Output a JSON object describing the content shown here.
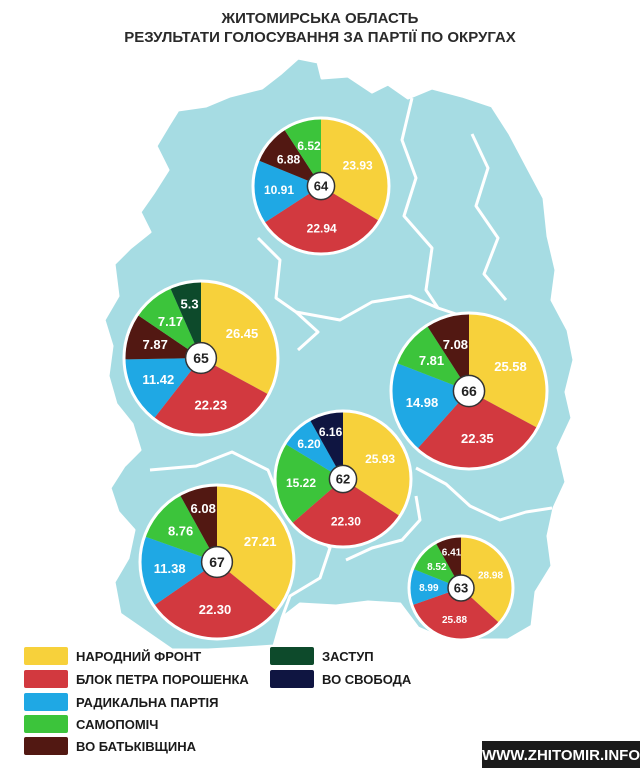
{
  "title": {
    "line1": "ЖИТОМИРСЬКА ОБЛАСТЬ",
    "line2": "РЕЗУЛЬТАТИ ГОЛОСУВАННЯ ЗА ПАРТІЇ ПО ОКРУГАХ"
  },
  "colors": {
    "map_fill": "#a6dce3",
    "map_stroke": "#ffffff",
    "background": "#ffffff",
    "pie_border": "#ffffff"
  },
  "parties": [
    {
      "key": "nf",
      "label": "НАРОДНИЙ ФРОНТ",
      "color": "#f7d13b"
    },
    {
      "key": "bpp",
      "label": "БЛОК ПЕТРА ПОРОШЕНКА",
      "color": "#d2393f"
    },
    {
      "key": "rp",
      "label": "РАДИКАЛЬНА ПАРТІЯ",
      "color": "#1fa8e4"
    },
    {
      "key": "sam",
      "label": "САМОПОМІЧ",
      "color": "#3cc43b"
    },
    {
      "key": "bat",
      "label": "ВО БАТЬКІВЩИНА",
      "color": "#521812"
    },
    {
      "key": "zastup",
      "label": "ЗАСТУП",
      "color": "#0d4a2b"
    },
    {
      "key": "svoboda",
      "label": "ВО СВОБОДА",
      "color": "#0f1541"
    }
  ],
  "chart_data": {
    "type": "pie",
    "title": "ЖИТОМИРСЬКА ОБЛАСТЬ — РЕЗУЛЬТАТИ ГОЛОСУВАННЯ ЗА ПАРТІЇ ПО ОКРУГАХ",
    "unit": "%",
    "districts": [
      {
        "district": "64",
        "slices": [
          {
            "party": "nf",
            "value": 23.93,
            "label": "23.93"
          },
          {
            "party": "bpp",
            "value": 22.94,
            "label": "22.94"
          },
          {
            "party": "rp",
            "value": 10.91,
            "label": "10.91"
          },
          {
            "party": "bat",
            "value": 6.88,
            "label": "6.88"
          },
          {
            "party": "sam",
            "value": 6.52,
            "label": "6.52"
          }
        ]
      },
      {
        "district": "65",
        "slices": [
          {
            "party": "nf",
            "value": 26.45,
            "label": "26.45"
          },
          {
            "party": "bpp",
            "value": 22.23,
            "label": "22.23"
          },
          {
            "party": "rp",
            "value": 11.42,
            "label": "11.42"
          },
          {
            "party": "bat",
            "value": 7.87,
            "label": "7.87"
          },
          {
            "party": "sam",
            "value": 7.17,
            "label": "7.17"
          },
          {
            "party": "zastup",
            "value": 5.3,
            "label": "5.3"
          }
        ]
      },
      {
        "district": "66",
        "slices": [
          {
            "party": "nf",
            "value": 25.58,
            "label": "25.58"
          },
          {
            "party": "bpp",
            "value": 22.35,
            "label": "22.35"
          },
          {
            "party": "rp",
            "value": 14.98,
            "label": "14.98"
          },
          {
            "party": "sam",
            "value": 7.81,
            "label": "7.81"
          },
          {
            "party": "bat",
            "value": 7.08,
            "label": "7.08"
          }
        ]
      },
      {
        "district": "62",
        "slices": [
          {
            "party": "nf",
            "value": 25.93,
            "label": "25.93"
          },
          {
            "party": "bpp",
            "value": 22.3,
            "label": "22.30"
          },
          {
            "party": "sam",
            "value": 15.22,
            "label": "15.22"
          },
          {
            "party": "rp",
            "value": 6.2,
            "label": "6.20"
          },
          {
            "party": "svoboda",
            "value": 6.16,
            "label": "6.16"
          }
        ]
      },
      {
        "district": "67",
        "slices": [
          {
            "party": "nf",
            "value": 27.21,
            "label": "27.21"
          },
          {
            "party": "bpp",
            "value": 22.3,
            "label": "22.30"
          },
          {
            "party": "rp",
            "value": 11.38,
            "label": "11.38"
          },
          {
            "party": "sam",
            "value": 8.76,
            "label": "8.76"
          },
          {
            "party": "bat",
            "value": 6.08,
            "label": "6.08"
          }
        ]
      },
      {
        "district": "63",
        "slices": [
          {
            "party": "nf",
            "value": 28.98,
            "label": "28.98"
          },
          {
            "party": "bpp",
            "value": 25.88,
            "label": "25.88"
          },
          {
            "party": "rp",
            "value": 8.99,
            "label": "8.99"
          },
          {
            "party": "sam",
            "value": 8.52,
            "label": "8.52"
          },
          {
            "party": "bat",
            "value": 6.41,
            "label": "6.41"
          }
        ]
      }
    ]
  },
  "credit": {
    "text": "WWW.ZHITOMIR.INFO",
    "background": "#1b1b1b"
  }
}
